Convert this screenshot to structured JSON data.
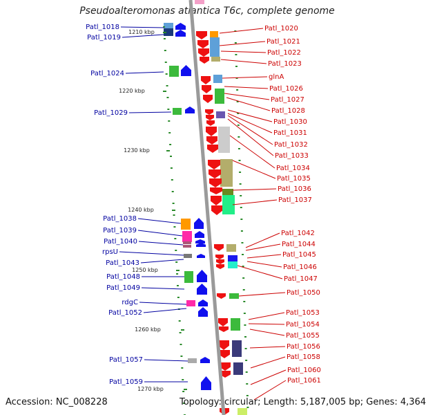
{
  "title": "Pseudoalteromonas atlantica T6c, complete genome",
  "footer": {
    "accession": "Accession: NC_008228",
    "topology": "Topology: circular; Length: 5,187,005 bp; Genes: 4,364"
  },
  "colors": {
    "axis": "#9a9a9a",
    "left_label": "#0000a0",
    "right_label": "#cc0000",
    "tick": "#2a8a2a"
  },
  "ticks": [
    "1210 kbp",
    "1220 kbp",
    "1230 kbp",
    "1240 kbp",
    "1250 kbp",
    "1260 kbp",
    "1270 kbp"
  ],
  "left_labels": [
    "Patl_1018",
    "Patl_1019",
    "Patl_1024",
    "Patl_1029",
    "Patl_1038",
    "Patl_1039",
    "Patl_1040",
    "rpsU",
    "Patl_1043",
    "Patl_1048",
    "Patl_1049",
    "rdgC",
    "Patl_1052",
    "Patl_1057",
    "Patl_1059"
  ],
  "right_labels": [
    "Patl_1020",
    "Patl_1021",
    "Patl_1022",
    "Patl_1023",
    "glnA",
    "Patl_1026",
    "Patl_1027",
    "Patl_1028",
    "Patl_1030",
    "Patl_1031",
    "Patl_1032",
    "Patl_1033",
    "Patl_1034",
    "Patl_1035",
    "Patl_1036",
    "Patl_1037",
    "Patl_1042",
    "Patl_1044",
    "Patl_1045",
    "Patl_1046",
    "Patl_1047",
    "Patl_1050",
    "Patl_1053",
    "Patl_1054",
    "Patl_1055",
    "Patl_1056",
    "Patl_1058",
    "Patl_1060",
    "Patl_1061"
  ]
}
